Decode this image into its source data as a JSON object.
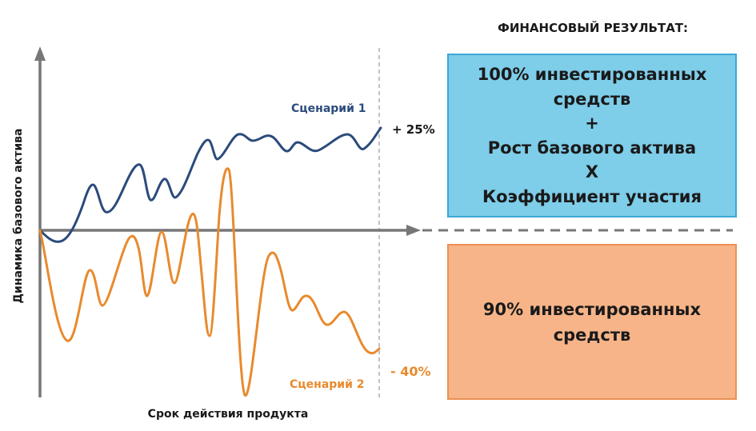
{
  "header": {
    "title": "ФИНАНСОВЫЙ РЕЗУЛЬТАТ:"
  },
  "axes": {
    "y_label": "Динамика базового актива",
    "x_label": "Срок действия продукта"
  },
  "scenarios": {
    "up": {
      "name": "Сценарий 1",
      "result": "+ 25%",
      "color": "#2b4b7b"
    },
    "down": {
      "name": "Сценарий 2",
      "result": "- 40%",
      "color": "#e88a2e"
    }
  },
  "outcome_up": {
    "lines": [
      "100% инвестированных",
      "средств",
      "+",
      "Рост базового актива",
      "Х",
      "Коэффициент участия"
    ],
    "color": "#7ecde9"
  },
  "outcome_down": {
    "lines": [
      "90% инвестированных",
      "средств"
    ],
    "color": "#f7b488"
  }
}
